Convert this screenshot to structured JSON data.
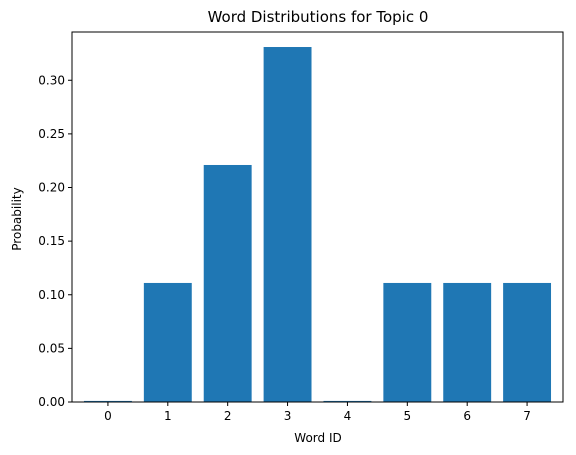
{
  "chart_data": {
    "type": "bar",
    "title": "Word Distributions for Topic 0",
    "xlabel": "Word ID",
    "ylabel": "Probability",
    "categories": [
      "0",
      "1",
      "2",
      "3",
      "4",
      "5",
      "6",
      "7"
    ],
    "values": [
      0.001,
      0.111,
      0.221,
      0.331,
      0.001,
      0.111,
      0.111,
      0.111
    ],
    "ylim": [
      0,
      0.345
    ],
    "yticks": [
      "0.00",
      "0.05",
      "0.10",
      "0.15",
      "0.20",
      "0.25",
      "0.30"
    ],
    "bar_color": "#1f77b4",
    "grid": false,
    "legend": "none"
  }
}
